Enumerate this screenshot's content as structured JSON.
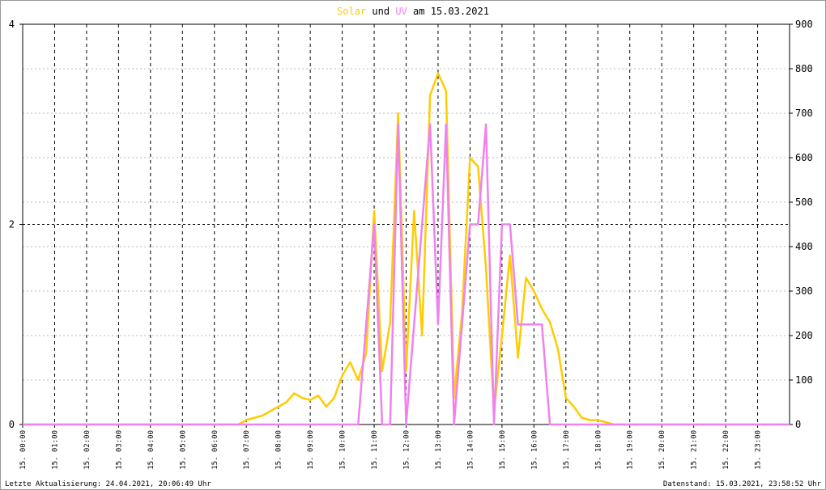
{
  "chart_data": {
    "type": "line",
    "title_connector": "und",
    "title_suffix": "am 15.03.2021",
    "x": [
      0,
      0.25,
      0.5,
      0.75,
      1,
      1.25,
      1.5,
      1.75,
      2,
      2.25,
      2.5,
      2.75,
      3,
      3.25,
      3.5,
      3.75,
      4,
      4.25,
      4.5,
      4.75,
      5,
      5.25,
      5.5,
      5.75,
      6,
      6.25,
      6.5,
      6.75,
      7,
      7.25,
      7.5,
      7.75,
      8,
      8.25,
      8.5,
      8.75,
      9,
      9.25,
      9.5,
      9.75,
      10,
      10.25,
      10.5,
      10.75,
      11,
      11.25,
      11.5,
      11.75,
      12,
      12.25,
      12.5,
      12.75,
      13,
      13.25,
      13.5,
      13.75,
      14,
      14.25,
      14.5,
      14.75,
      15,
      15.25,
      15.5,
      15.75,
      16,
      16.25,
      16.5,
      16.75,
      17,
      17.25,
      17.5,
      17.75,
      18,
      18.25,
      18.5,
      18.75,
      19,
      19.25,
      19.5,
      19.75,
      20,
      20.25,
      20.5,
      20.75,
      21,
      21.25,
      21.5,
      21.75,
      22,
      22.25,
      22.5,
      22.75,
      23,
      23.25,
      23.5,
      23.75,
      24
    ],
    "series": [
      {
        "name": "Solar",
        "color": "#ffcc00",
        "axis": "y2",
        "values": [
          0,
          0,
          0,
          0,
          0,
          0,
          0,
          0,
          0,
          0,
          0,
          0,
          0,
          0,
          0,
          0,
          0,
          0,
          0,
          0,
          0,
          0,
          0,
          0,
          0,
          0,
          0,
          0,
          10,
          15,
          20,
          30,
          40,
          50,
          70,
          60,
          55,
          65,
          40,
          60,
          110,
          140,
          100,
          160,
          480,
          120,
          230,
          700,
          120,
          480,
          200,
          740,
          790,
          750,
          60,
          250,
          600,
          580,
          350,
          30,
          200,
          380,
          150,
          330,
          300,
          260,
          230,
          170,
          60,
          40,
          15,
          10,
          10,
          5,
          0,
          0,
          0,
          0,
          0,
          0,
          0,
          0,
          0,
          0,
          0,
          0,
          0,
          0,
          0,
          0,
          0,
          0,
          0,
          0,
          0,
          0,
          0
        ]
      },
      {
        "name": "UV",
        "color": "#ee82ee",
        "axis": "y",
        "values": [
          0,
          0,
          0,
          0,
          0,
          0,
          0,
          0,
          0,
          0,
          0,
          0,
          0,
          0,
          0,
          0,
          0,
          0,
          0,
          0,
          0,
          0,
          0,
          0,
          0,
          0,
          0,
          0,
          0,
          0,
          0,
          0,
          0,
          0,
          0,
          0,
          0,
          0,
          0,
          0,
          0,
          0,
          0,
          1,
          2,
          0,
          0,
          3,
          0,
          1,
          2,
          3,
          1,
          3,
          0,
          1,
          2,
          2,
          3,
          0,
          2,
          2,
          1,
          1,
          1,
          1,
          0,
          0,
          0,
          0,
          0,
          0,
          0,
          0,
          0,
          0,
          0,
          0,
          0,
          0,
          0,
          0,
          0,
          0,
          0,
          0,
          0,
          0,
          0,
          0,
          0,
          0,
          0,
          0,
          0,
          0,
          0
        ]
      }
    ],
    "xlim": [
      0,
      24
    ],
    "xticks": [
      {
        "value": 0,
        "label": "15. 00:00"
      },
      {
        "value": 1,
        "label": "15. 01:00"
      },
      {
        "value": 2,
        "label": "15. 02:00"
      },
      {
        "value": 3,
        "label": "15. 03:00"
      },
      {
        "value": 4,
        "label": "15. 04:00"
      },
      {
        "value": 5,
        "label": "15. 05:00"
      },
      {
        "value": 6,
        "label": "15. 06:00"
      },
      {
        "value": 7,
        "label": "15. 07:00"
      },
      {
        "value": 8,
        "label": "15. 08:00"
      },
      {
        "value": 9,
        "label": "15. 09:00"
      },
      {
        "value": 10,
        "label": "15. 10:00"
      },
      {
        "value": 11,
        "label": "15. 11:00"
      },
      {
        "value": 12,
        "label": "15. 12:00"
      },
      {
        "value": 13,
        "label": "15. 13:00"
      },
      {
        "value": 14,
        "label": "15. 14:00"
      },
      {
        "value": 15,
        "label": "15. 15:00"
      },
      {
        "value": 16,
        "label": "15. 16:00"
      },
      {
        "value": 17,
        "label": "15. 17:00"
      },
      {
        "value": 18,
        "label": "15. 18:00"
      },
      {
        "value": 19,
        "label": "15. 19:00"
      },
      {
        "value": 20,
        "label": "15. 20:00"
      },
      {
        "value": 21,
        "label": "15. 21:00"
      },
      {
        "value": 22,
        "label": "15. 22:00"
      },
      {
        "value": 23,
        "label": "15. 23:00"
      }
    ],
    "ylim": [
      0,
      4
    ],
    "yticks": [
      0,
      2,
      4
    ],
    "y2lim": [
      0,
      900
    ],
    "y2ticks": [
      0,
      100,
      200,
      300,
      400,
      500,
      600,
      700,
      800,
      900
    ],
    "grid": true,
    "footer_left": "Letzte Aktualisierung: 24.04.2021, 20:06:49 Uhr",
    "footer_right": "Datenstand: 15.03.2021, 23:58:52 Uhr"
  }
}
